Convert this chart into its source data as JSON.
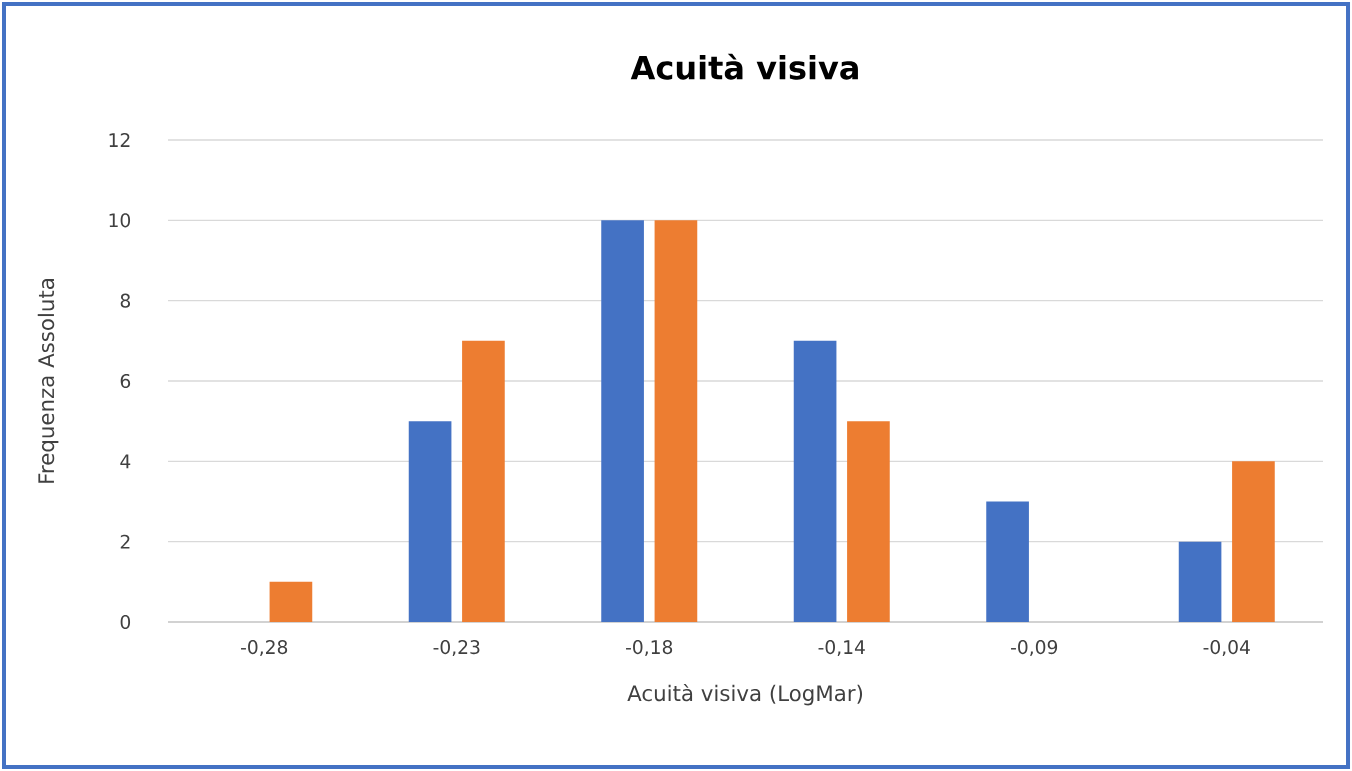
{
  "chart_data": {
    "type": "bar",
    "title": "Acuità visiva",
    "xlabel": "Acuità visiva (LogMar)",
    "ylabel": "Frequenza Assoluta",
    "categories": [
      "-0,28",
      "-0,23",
      "-0,18",
      "-0,14",
      "-0,09",
      "-0,04"
    ],
    "series": [
      {
        "color": "#4472c4",
        "values": [
          0,
          5,
          10,
          7,
          3,
          2
        ]
      },
      {
        "color": "#ed7d31",
        "values": [
          1,
          7,
          10,
          5,
          0,
          4
        ]
      }
    ],
    "ylim": [
      0,
      12
    ],
    "yticks": [
      0,
      2,
      4,
      6,
      8,
      10,
      12
    ],
    "grid": "y"
  }
}
